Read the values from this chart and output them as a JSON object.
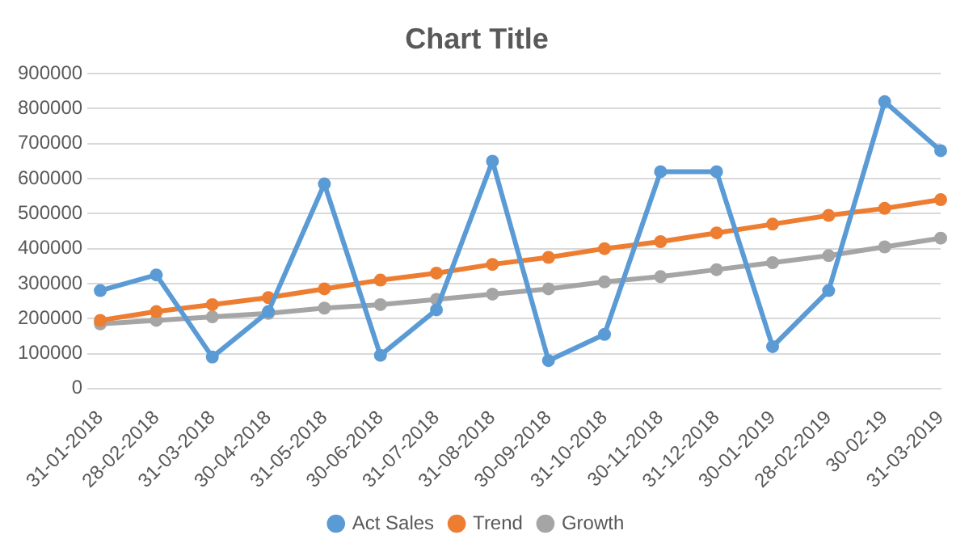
{
  "chart_data": {
    "type": "line",
    "title": "Chart Title",
    "categories": [
      "31-01-2018",
      "28-02-2018",
      "31-03-2018",
      "30-04-2018",
      "31-05-2018",
      "30-06-2018",
      "31-07-2018",
      "31-08-2018",
      "30-09-2018",
      "31-10-2018",
      "30-11-2018",
      "31-12-2018",
      "30-01-2019",
      "28-02-2019",
      "30-02-19",
      "31-03-2019"
    ],
    "series": [
      {
        "name": "Act Sales",
        "color": "#5b9bd5",
        "values": [
          280000,
          325000,
          90000,
          220000,
          585000,
          95000,
          225000,
          650000,
          80000,
          155000,
          620000,
          620000,
          120000,
          280000,
          820000,
          680000
        ]
      },
      {
        "name": "Trend",
        "color": "#ed7d31",
        "values": [
          195000,
          220000,
          240000,
          260000,
          285000,
          310000,
          330000,
          355000,
          375000,
          400000,
          420000,
          445000,
          470000,
          495000,
          515000,
          540000
        ]
      },
      {
        "name": "Growth",
        "color": "#a5a5a5",
        "values": [
          185000,
          195000,
          205000,
          215000,
          230000,
          240000,
          255000,
          270000,
          285000,
          305000,
          320000,
          340000,
          360000,
          380000,
          405000,
          430000
        ]
      }
    ],
    "ylim": [
      0,
      900000
    ],
    "yticks": [
      0,
      100000,
      200000,
      300000,
      400000,
      500000,
      600000,
      700000,
      800000,
      900000
    ],
    "grid": "y",
    "legend": "bottom",
    "marker": "circle",
    "line_style": "solid"
  }
}
